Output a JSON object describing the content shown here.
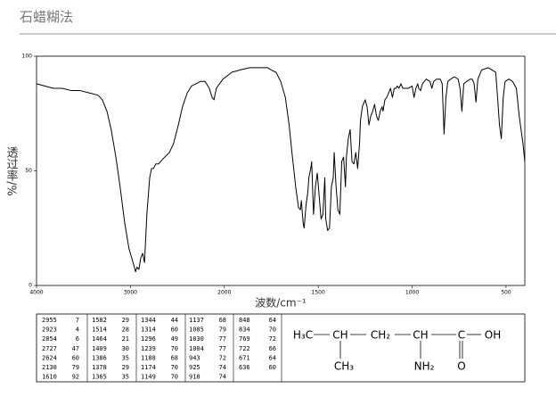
{
  "header": {
    "title": "石蜡糊法"
  },
  "chart_data": {
    "type": "line",
    "y_label": "透过率/%",
    "x_label": "波数/cm⁻¹",
    "color": "#000000",
    "xlim": [
      4000,
      400
    ],
    "ylim": [
      0,
      100
    ],
    "xticks": [
      4000,
      3000,
      2000,
      1500,
      1000,
      500
    ],
    "yticks": [
      0,
      50,
      100
    ],
    "x": [
      4000,
      3915,
      3820,
      3725,
      3630,
      3535,
      3440,
      3345,
      3300,
      3250,
      3205,
      3155,
      3110,
      3060,
      3015,
      2965,
      2945,
      2930,
      2910,
      2890,
      2870,
      2850,
      2825,
      2795,
      2775,
      2755,
      2730,
      2700,
      2680,
      2635,
      2585,
      2540,
      2490,
      2445,
      2395,
      2350,
      2300,
      2255,
      2205,
      2160,
      2130,
      2110,
      2085,
      2015,
      1960,
      1915,
      1865,
      1770,
      1750,
      1725,
      1700,
      1675,
      1655,
      1640,
      1620,
      1605,
      1595,
      1590,
      1580,
      1575,
      1565,
      1555,
      1550,
      1540,
      1535,
      1525,
      1515,
      1505,
      1495,
      1485,
      1475,
      1465,
      1460,
      1450,
      1440,
      1430,
      1420,
      1415,
      1405,
      1395,
      1385,
      1375,
      1365,
      1355,
      1350,
      1340,
      1330,
      1320,
      1310,
      1300,
      1290,
      1280,
      1275,
      1265,
      1250,
      1240,
      1230,
      1220,
      1210,
      1200,
      1190,
      1180,
      1170,
      1160,
      1155,
      1145,
      1135,
      1125,
      1115,
      1105,
      1095,
      1085,
      1080,
      1070,
      1060,
      1050,
      1040,
      1020,
      1000,
      990,
      980,
      970,
      965,
      955,
      945,
      925,
      905,
      895,
      885,
      870,
      850,
      840,
      830,
      820,
      810,
      795,
      775,
      755,
      745,
      735,
      725,
      710,
      690,
      680,
      670,
      660,
      650,
      630,
      595,
      575,
      555,
      545,
      535,
      525,
      515,
      505,
      485,
      465,
      445,
      430,
      410,
      400
    ],
    "values": [
      88,
      87,
      86,
      86,
      85,
      85,
      84,
      83,
      81,
      76,
      68,
      56,
      43,
      27,
      16,
      9,
      6,
      8,
      7,
      12,
      14,
      10,
      31,
      47,
      51,
      51,
      53,
      53,
      54,
      56,
      58,
      62,
      70,
      78,
      84,
      87,
      88,
      89,
      89,
      86,
      82,
      81,
      86,
      90,
      93,
      94,
      95,
      95,
      94,
      93,
      89,
      82,
      70,
      58,
      43,
      34,
      33,
      37,
      27,
      25,
      35,
      41,
      47,
      51,
      54,
      31,
      43,
      49,
      39,
      29,
      31,
      47,
      29,
      24,
      25,
      43,
      47,
      58,
      43,
      33,
      31,
      54,
      56,
      43,
      56,
      64,
      68,
      54,
      53,
      58,
      51,
      62,
      72,
      78,
      81,
      78,
      70,
      74,
      76,
      79,
      74,
      72,
      76,
      78,
      76,
      81,
      82,
      84,
      86,
      82,
      86,
      86,
      87,
      86,
      88,
      86,
      86,
      86,
      87,
      82,
      86,
      88,
      86,
      85,
      88,
      90,
      89,
      86,
      89,
      90,
      90,
      88,
      66,
      82,
      89,
      90,
      91,
      90,
      86,
      76,
      88,
      89,
      90,
      90,
      88,
      80,
      90,
      94,
      95,
      94,
      93,
      82,
      70,
      64,
      82,
      89,
      90,
      89,
      86,
      74,
      62,
      54
    ]
  },
  "peak_table": [
    [
      [
        2955,
        7
      ],
      [
        2923,
        4
      ],
      [
        2854,
        6
      ],
      [
        2727,
        47
      ],
      [
        2624,
        60
      ],
      [
        2130,
        79
      ],
      [
        1610,
        92
      ]
    ],
    [
      [
        1582,
        29
      ],
      [
        1514,
        28
      ],
      [
        1464,
        21
      ],
      [
        1409,
        30
      ],
      [
        1386,
        35
      ],
      [
        1378,
        29
      ],
      [
        1365,
        35
      ]
    ],
    [
      [
        1344,
        44
      ],
      [
        1314,
        60
      ],
      [
        1296,
        49
      ],
      [
        1239,
        70
      ],
      [
        1188,
        68
      ],
      [
        1174,
        70
      ],
      [
        1149,
        70
      ]
    ],
    [
      [
        1137,
        68
      ],
      [
        1085,
        79
      ],
      [
        1030,
        77
      ],
      [
        1004,
        77
      ],
      [
        943,
        72
      ],
      [
        925,
        74
      ],
      [
        918,
        74
      ]
    ],
    [
      [
        848,
        64
      ],
      [
        834,
        70
      ],
      [
        769,
        72
      ],
      [
        722,
        66
      ],
      [
        671,
        64
      ],
      [
        636,
        60
      ]
    ]
  ],
  "structure": {
    "atoms": [
      "H₃C",
      "CH",
      "CH₂",
      "CH",
      "C",
      "OH",
      "CH₃",
      "NH₂",
      "O"
    ]
  }
}
